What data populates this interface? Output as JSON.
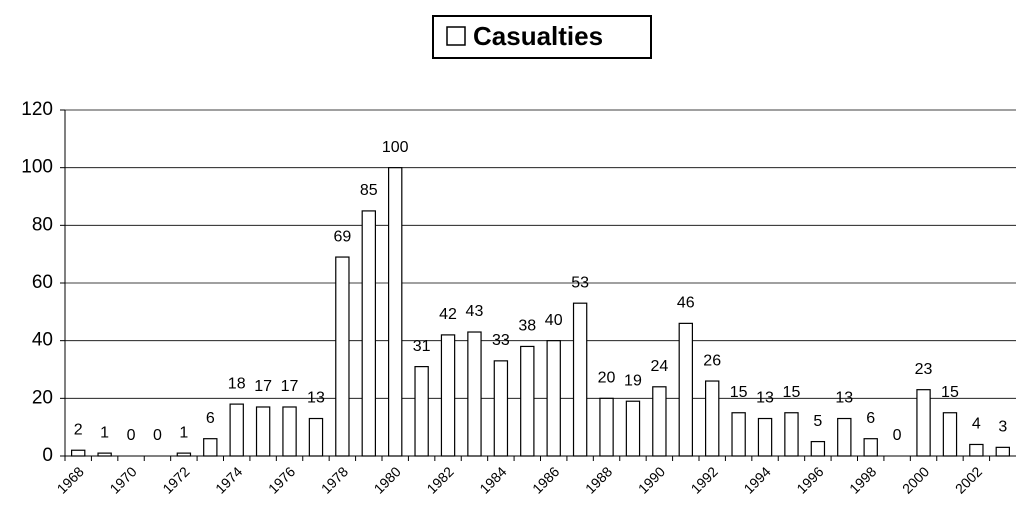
{
  "chart_data": {
    "type": "bar",
    "categories": [
      "1968",
      null,
      "1970",
      null,
      "1972",
      null,
      "1974",
      null,
      "1976",
      null,
      "1978",
      null,
      "1980",
      null,
      "1982",
      null,
      "1984",
      null,
      "1986",
      null,
      "1988",
      null,
      "1990",
      null,
      "1992",
      null,
      "1994",
      null,
      "1996",
      null,
      "1998",
      null,
      "2000",
      null,
      "2002",
      null
    ],
    "series": [
      {
        "name": "Casualties",
        "color": "#ffffff",
        "values": [
          2,
          1,
          0,
          0,
          1,
          6,
          18,
          17,
          17,
          13,
          69,
          85,
          100,
          31,
          42,
          43,
          33,
          38,
          40,
          53,
          20,
          19,
          24,
          46,
          26,
          15,
          13,
          15,
          5,
          13,
          6,
          0,
          23,
          15,
          4,
          3
        ]
      }
    ],
    "ylim": [
      0,
      120
    ],
    "yticks": [
      0,
      20,
      40,
      60,
      80,
      100,
      120
    ],
    "grid": true,
    "legend": "top"
  }
}
